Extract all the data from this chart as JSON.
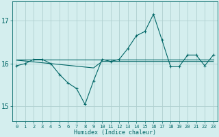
{
  "title": "",
  "xlabel": "Humidex (Indice chaleur)",
  "ylabel": "",
  "background_color": "#d4eeee",
  "grid_color": "#b0d0d0",
  "line_color": "#006666",
  "x_values": [
    0,
    1,
    2,
    3,
    4,
    5,
    6,
    7,
    8,
    9,
    10,
    11,
    12,
    13,
    14,
    15,
    16,
    17,
    18,
    19,
    20,
    21,
    22,
    23
  ],
  "y_main": [
    15.95,
    16.0,
    16.1,
    16.1,
    16.0,
    15.75,
    15.55,
    15.42,
    15.05,
    15.6,
    16.1,
    16.05,
    16.1,
    16.35,
    16.65,
    16.75,
    17.15,
    16.55,
    15.93,
    15.93,
    16.2,
    16.2,
    15.95,
    16.2
  ],
  "y_trend_up": [
    16.1,
    16.1,
    16.1,
    16.1,
    16.1,
    16.1,
    16.1,
    16.1,
    16.1,
    16.1,
    16.1,
    16.1,
    16.1,
    16.1,
    16.1,
    16.1,
    16.1,
    16.1,
    16.1,
    16.1,
    16.1,
    16.1,
    16.1,
    16.1
  ],
  "y_trend_down": [
    16.08,
    16.06,
    16.04,
    16.02,
    16.0,
    15.98,
    15.96,
    15.94,
    15.92,
    15.9,
    16.05,
    16.05,
    16.05,
    16.05,
    16.05,
    16.05,
    16.05,
    16.05,
    16.05,
    16.05,
    16.05,
    16.05,
    16.05,
    16.05
  ],
  "ylim": [
    14.65,
    17.45
  ],
  "yticks": [
    15,
    16,
    17
  ],
  "xlim": [
    -0.5,
    23.5
  ],
  "figsize": [
    3.2,
    2.0
  ],
  "dpi": 100
}
